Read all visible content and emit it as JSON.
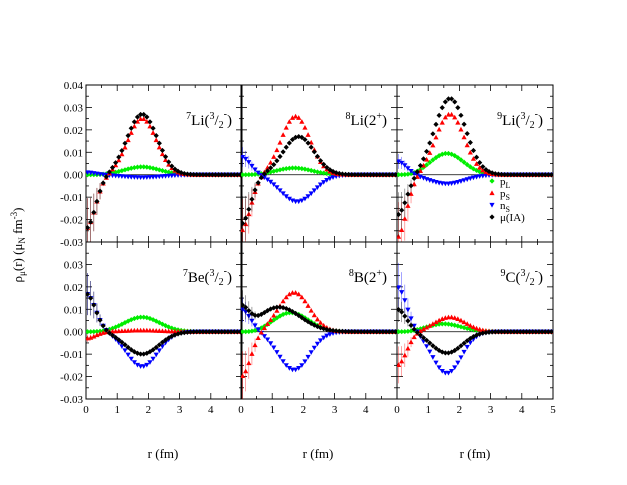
{
  "figure": {
    "ylabel_main": "ρ",
    "ylabel_sub": "μ",
    "ylabel_rest": "(r) (μ",
    "ylabel_unit_sub": "N",
    "ylabel_unit": " fm",
    "ylabel_exp": "-3",
    "ylabel_close": ")",
    "xlabel": "r (fm)"
  },
  "chart_data": {
    "type": "scatter",
    "grid": false,
    "layout": "2 rows x 3 columns, shared axes",
    "xlim": [
      0,
      5
    ],
    "ylim": [
      -0.03,
      0.04
    ],
    "x_ticks": [
      0,
      1,
      2,
      3,
      4,
      5
    ],
    "x_tick_labels": [
      "0",
      "1",
      "2",
      "3",
      "4",
      "5"
    ],
    "y_ticks": [
      -0.03,
      -0.02,
      -0.01,
      0.0,
      0.01,
      0.02,
      0.03,
      0.04
    ],
    "y_tick_labels": [
      "-0.03",
      "-0.02",
      "-0.01",
      "0.00",
      "0.01",
      "0.02",
      "0.03",
      "0.04"
    ],
    "legend": {
      "placement": "right, top row third panel",
      "entries": [
        {
          "key": "pL",
          "base": "p",
          "sub": "L",
          "color": "#00ee00",
          "marker": "diamond"
        },
        {
          "key": "pS",
          "base": "p",
          "sub": "S",
          "color": "#ff0000",
          "marker": "triangle-up"
        },
        {
          "key": "nS",
          "base": "n",
          "sub": "S",
          "color": "#0000ff",
          "marker": "triangle-down"
        },
        {
          "key": "mu",
          "base": "μ(IA)",
          "sub": "",
          "color": "#000000",
          "marker": "diamond"
        }
      ]
    },
    "panels": [
      {
        "row": 0,
        "col": 0,
        "label": {
          "mass": "7",
          "elem": "Li(",
          "num": "3",
          "den": "2",
          "sign": "-",
          "close": ")"
        },
        "series": {
          "pL": {
            "amp": 0.0035,
            "center": 1.8,
            "width": 0.8
          },
          "pS": {
            "amp": 0.025,
            "center": 1.8,
            "width": 0.65,
            "low": -0.024
          },
          "nS": {
            "amp": -0.0012,
            "center": 1.8,
            "width": 0.9,
            "low": 0.001
          },
          "mu": {
            "amp": 0.027,
            "center": 1.8,
            "width": 0.68,
            "low": -0.024
          }
        }
      },
      {
        "row": 0,
        "col": 1,
        "label": {
          "mass": "8",
          "elem": "Li(2",
          "num": "",
          "den": "",
          "sign": "+",
          "close": ")"
        },
        "series": {
          "pL": {
            "amp": 0.003,
            "center": 1.7,
            "width": 0.8
          },
          "pS": {
            "amp": 0.026,
            "center": 1.75,
            "width": 0.65,
            "low": -0.025
          },
          "nS": {
            "amp": -0.012,
            "center": 1.8,
            "width": 0.75,
            "low": 0.008
          },
          "mu": {
            "amp": 0.017,
            "center": 1.85,
            "width": 0.7,
            "low": -0.022
          }
        }
      },
      {
        "row": 0,
        "col": 2,
        "label": {
          "mass": "9",
          "elem": "Li(",
          "num": "3",
          "den": "2",
          "sign": "-",
          "close": ")"
        },
        "series": {
          "pL": {
            "amp": 0.0095,
            "center": 1.6,
            "width": 0.75
          },
          "pS": {
            "amp": 0.027,
            "center": 1.7,
            "width": 0.65,
            "low": -0.028
          },
          "nS": {
            "amp": -0.004,
            "center": 1.6,
            "width": 0.8,
            "low": 0.006
          },
          "mu": {
            "amp": 0.034,
            "center": 1.7,
            "width": 0.7,
            "low": -0.018
          }
        }
      },
      {
        "row": 1,
        "col": 0,
        "label": {
          "mass": "7",
          "elem": "Be(",
          "num": "3",
          "den": "2",
          "sign": "-",
          "close": ")"
        },
        "series": {
          "pL": {
            "amp": 0.0065,
            "center": 1.8,
            "width": 0.8
          },
          "pS": {
            "amp": 0.0006,
            "center": 1.8,
            "width": 0.9,
            "low": -0.003
          },
          "nS": {
            "amp": -0.0155,
            "center": 1.8,
            "width": 0.7,
            "low": 0.017
          },
          "mu": {
            "amp": -0.01,
            "center": 1.8,
            "width": 0.75,
            "low": 0.017
          }
        }
      },
      {
        "row": 1,
        "col": 1,
        "label": {
          "mass": "8",
          "elem": "B(2",
          "num": "",
          "den": "",
          "sign": "+",
          "close": ")"
        },
        "series": {
          "pL": {
            "amp": 0.0085,
            "center": 1.6,
            "width": 0.8
          },
          "pS": {
            "amp": 0.0175,
            "center": 1.7,
            "width": 0.7,
            "low": -0.02
          },
          "nS": {
            "amp": -0.017,
            "center": 1.7,
            "width": 0.7,
            "low": 0.01
          },
          "mu": {
            "amp": 0.011,
            "center": 1.2,
            "width": 1.0,
            "low": 0.012
          }
        }
      },
      {
        "row": 1,
        "col": 2,
        "label": {
          "mass": "9",
          "elem": "C(",
          "num": "3",
          "den": "2",
          "sign": "-",
          "close": ")"
        },
        "series": {
          "pL": {
            "amp": 0.0035,
            "center": 1.5,
            "width": 0.8
          },
          "pS": {
            "amp": 0.0065,
            "center": 1.7,
            "width": 0.7,
            "low": -0.015
          },
          "nS": {
            "amp": -0.0185,
            "center": 1.6,
            "width": 0.65,
            "low": 0.02
          },
          "mu": {
            "amp": -0.0095,
            "center": 1.6,
            "width": 0.7,
            "low": 0.01
          }
        }
      }
    ]
  }
}
